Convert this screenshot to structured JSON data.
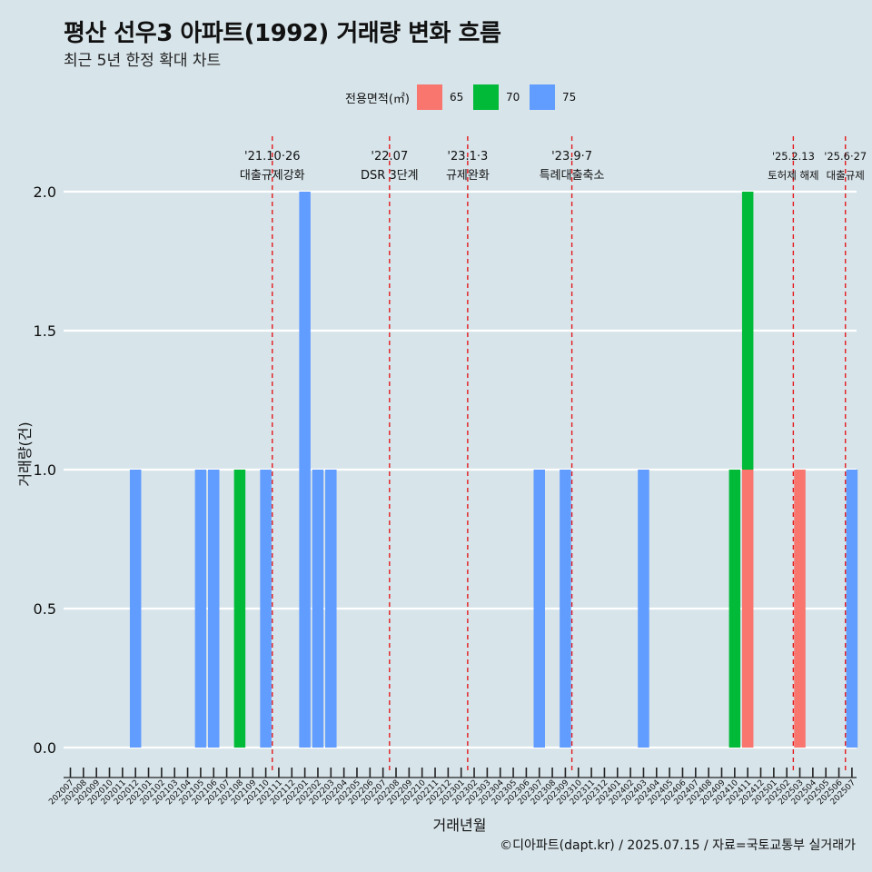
{
  "title": "평산 선우3 아파트(1992) 거래량 변화 흐름",
  "subtitle": "최근 5년 한정 확대 차트",
  "legend": {
    "title": "전용면적(㎡)",
    "items": [
      {
        "label": "65",
        "color": "#F8766D"
      },
      {
        "label": "70",
        "color": "#00BA38"
      },
      {
        "label": "75",
        "color": "#619CFF"
      }
    ]
  },
  "caption": "©디아파트(dapt.kr) / 2025.07.15 / 자료=국토교통부 실거래가",
  "chart_data": {
    "type": "bar",
    "xlabel": "거래년월",
    "ylabel": "거래량(건)",
    "ylim": [
      0,
      2
    ],
    "yticks": [
      "0.0",
      "0.5",
      "1.0",
      "1.5",
      "2.0"
    ],
    "grid": true,
    "categories": [
      "202007",
      "202008",
      "202009",
      "202010",
      "202011",
      "202012",
      "202101",
      "202102",
      "202103",
      "202104",
      "202105",
      "202106",
      "202107",
      "202108",
      "202109",
      "202110",
      "202111",
      "202112",
      "202201",
      "202202",
      "202203",
      "202204",
      "202205",
      "202206",
      "202207",
      "202208",
      "202209",
      "202210",
      "202211",
      "202212",
      "202301",
      "202302",
      "202303",
      "202304",
      "202305",
      "202306",
      "202307",
      "202308",
      "202309",
      "202310",
      "202311",
      "202312",
      "202401",
      "202402",
      "202403",
      "202404",
      "202405",
      "202406",
      "202407",
      "202408",
      "202409",
      "202410",
      "202411",
      "202412",
      "202501",
      "202502",
      "202503",
      "202504",
      "202505",
      "202506",
      "202507"
    ],
    "series": [
      {
        "name": "65",
        "color": "#F8766D",
        "points": [
          {
            "x": "202411",
            "y": 1
          },
          {
            "x": "202503",
            "y": 1
          }
        ]
      },
      {
        "name": "70",
        "color": "#00BA38",
        "points": [
          {
            "x": "202108",
            "y": 1
          },
          {
            "x": "202410",
            "y": 1
          },
          {
            "x": "202411",
            "y": 1
          }
        ]
      },
      {
        "name": "75",
        "color": "#619CFF",
        "points": [
          {
            "x": "202012",
            "y": 1
          },
          {
            "x": "202105",
            "y": 1
          },
          {
            "x": "202106",
            "y": 1
          },
          {
            "x": "202110",
            "y": 1
          },
          {
            "x": "202201",
            "y": 2
          },
          {
            "x": "202202",
            "y": 1
          },
          {
            "x": "202203",
            "y": 1
          },
          {
            "x": "202307",
            "y": 1
          },
          {
            "x": "202309",
            "y": 1
          },
          {
            "x": "202403",
            "y": 1
          },
          {
            "x": "202507",
            "y": 1
          }
        ]
      }
    ],
    "annotations": [
      {
        "date": "202110",
        "line1": "'21.10·26",
        "line2": "대출규제강화"
      },
      {
        "date": "202207",
        "line1": "'22.07",
        "line2": "DSR 3단계"
      },
      {
        "date": "202301",
        "line1": "'23.1·3",
        "line2": "규제완화"
      },
      {
        "date": "202309",
        "line1": "'23.9·7",
        "line2": "특례대출축소"
      },
      {
        "date": "202502",
        "line1": "'25.2.13",
        "line2": "토허제 해제"
      },
      {
        "date": "202506",
        "line1": "'25.6·27",
        "line2": "대출규제"
      }
    ]
  }
}
